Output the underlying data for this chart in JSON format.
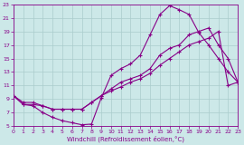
{
  "xlabel": "Windchill (Refroidissement éolien,°C)",
  "xlim": [
    0,
    23
  ],
  "ylim": [
    5,
    23
  ],
  "xticks": [
    0,
    1,
    2,
    3,
    4,
    5,
    6,
    7,
    8,
    9,
    10,
    11,
    12,
    13,
    14,
    15,
    16,
    17,
    18,
    19,
    20,
    21,
    22,
    23
  ],
  "yticks": [
    5,
    7,
    9,
    11,
    13,
    15,
    17,
    19,
    21,
    23
  ],
  "bg_color": "#cce8e8",
  "grid_color": "#aacccc",
  "line_color": "#880088",
  "curve1_x": [
    0,
    1,
    2,
    3,
    4,
    5,
    6,
    7,
    8,
    9,
    10,
    11,
    12,
    13,
    14,
    15,
    16,
    17,
    18,
    19,
    20,
    21,
    22,
    23
  ],
  "curve1_y": [
    9.5,
    8.2,
    8.0,
    7.0,
    6.3,
    5.8,
    5.5,
    5.2,
    5.3,
    9.2,
    12.5,
    13.5,
    14.2,
    15.5,
    18.5,
    21.5,
    22.8,
    22.2,
    21.5,
    18.8,
    17.0,
    15.0,
    13.0,
    11.5
  ],
  "curve2_x": [
    0,
    1,
    2,
    3,
    4,
    5,
    6,
    7,
    8,
    9,
    10,
    11,
    12,
    13,
    14,
    15,
    16,
    17,
    18,
    19,
    20,
    21,
    22,
    23
  ],
  "curve2_y": [
    9.5,
    8.2,
    8.2,
    8.0,
    7.5,
    7.5,
    7.5,
    7.5,
    8.5,
    9.5,
    10.5,
    11.5,
    12.0,
    12.5,
    13.5,
    15.5,
    16.5,
    17.0,
    18.5,
    19.0,
    19.5,
    17.0,
    15.0,
    11.5
  ],
  "curve3_x": [
    0,
    1,
    2,
    3,
    4,
    5,
    6,
    7,
    8,
    9,
    10,
    11,
    12,
    13,
    14,
    15,
    16,
    17,
    18,
    19,
    20,
    21,
    22,
    23
  ],
  "curve3_y": [
    9.5,
    8.5,
    8.5,
    8.0,
    7.5,
    7.5,
    7.5,
    7.5,
    8.5,
    9.5,
    10.2,
    10.8,
    11.5,
    12.0,
    12.8,
    14.0,
    15.0,
    16.0,
    17.0,
    17.5,
    18.0,
    19.0,
    11.0,
    11.5
  ]
}
